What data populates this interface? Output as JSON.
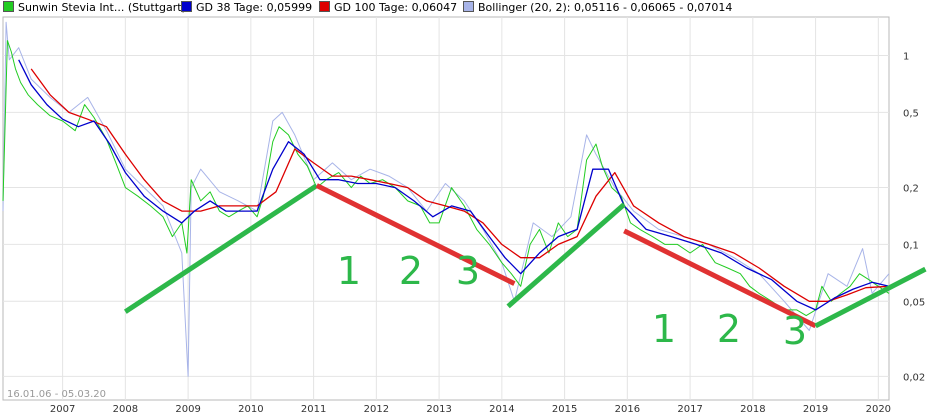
{
  "legend": [
    {
      "label": "Sunwin Stevia Int... (Stuttgart)",
      "color": "#22cc22"
    },
    {
      "label": "GD 38 Tage: 0,05999",
      "color": "#0000cc"
    },
    {
      "label": "GD 100 Tage: 0,06047",
      "color": "#dd0000"
    },
    {
      "label": "Bollinger (20, 2): 0,05116 - 0,06065 - 0,07014",
      "color": "#a8b4e8"
    }
  ],
  "date_range": "16.01.06 - 05.03.20",
  "chart_data": {
    "type": "line",
    "title": "",
    "xlabel": "",
    "ylabel": "",
    "y_scale": "log",
    "ylim": [
      0.015,
      1.6
    ],
    "xlim": [
      2006.05,
      2020.17
    ],
    "grid": true,
    "x_ticks": [
      {
        "value": 2007,
        "label": "2007"
      },
      {
        "value": 2008,
        "label": "2008"
      },
      {
        "value": 2009,
        "label": "2009"
      },
      {
        "value": 2010,
        "label": "2010"
      },
      {
        "value": 2011,
        "label": "2011"
      },
      {
        "value": 2012,
        "label": "2012"
      },
      {
        "value": 2013,
        "label": "2013"
      },
      {
        "value": 2014,
        "label": "2014"
      },
      {
        "value": 2015,
        "label": "2015"
      },
      {
        "value": 2016,
        "label": "2016"
      },
      {
        "value": 2017,
        "label": "2017"
      },
      {
        "value": 2018,
        "label": "2018"
      },
      {
        "value": 2019,
        "label": "2019"
      },
      {
        "value": 2020,
        "label": "2020"
      }
    ],
    "y_ticks": [
      {
        "value": 1,
        "label": "1"
      },
      {
        "value": 0.5,
        "label": "0,5"
      },
      {
        "value": 0.2,
        "label": "0,2"
      },
      {
        "value": 0.1,
        "label": "0,1"
      },
      {
        "value": 0.05,
        "label": "0,05"
      },
      {
        "value": 0.02,
        "label": "0,02"
      }
    ],
    "series": [
      {
        "name": "Sunwin Stevia Int... (Stuttgart)",
        "color": "#22cc22",
        "x": [
          2006.05,
          2006.12,
          2006.18,
          2006.25,
          2006.33,
          2006.45,
          2006.6,
          2006.8,
          2007.0,
          2007.2,
          2007.35,
          2007.5,
          2007.7,
          2007.85,
          2008.0,
          2008.2,
          2008.4,
          2008.6,
          2008.75,
          2008.9,
          2008.98,
          2009.05,
          2009.2,
          2009.35,
          2009.5,
          2009.65,
          2009.8,
          2009.95,
          2010.1,
          2010.2,
          2010.35,
          2010.45,
          2010.6,
          2010.75,
          2010.9,
          2011.05,
          2011.2,
          2011.4,
          2011.6,
          2011.75,
          2011.9,
          2012.1,
          2012.3,
          2012.5,
          2012.7,
          2012.85,
          2013.0,
          2013.2,
          2013.4,
          2013.6,
          2013.8,
          2014.0,
          2014.15,
          2014.3,
          2014.45,
          2014.6,
          2014.75,
          2014.9,
          2015.05,
          2015.2,
          2015.35,
          2015.5,
          2015.6,
          2015.75,
          2015.9,
          2016.05,
          2016.2,
          2016.4,
          2016.6,
          2016.8,
          2017.0,
          2017.2,
          2017.4,
          2017.6,
          2017.8,
          2017.95,
          2018.1,
          2018.3,
          2018.5,
          2018.7,
          2018.85,
          2019.0,
          2019.1,
          2019.25,
          2019.4,
          2019.55,
          2019.7,
          2019.85,
          2020.0,
          2020.17
        ],
        "y": [
          0.17,
          1.2,
          1.05,
          0.85,
          0.72,
          0.62,
          0.55,
          0.48,
          0.45,
          0.4,
          0.55,
          0.47,
          0.36,
          0.27,
          0.2,
          0.18,
          0.16,
          0.14,
          0.11,
          0.13,
          0.09,
          0.22,
          0.17,
          0.19,
          0.15,
          0.14,
          0.15,
          0.16,
          0.14,
          0.18,
          0.35,
          0.42,
          0.38,
          0.3,
          0.26,
          0.2,
          0.22,
          0.24,
          0.2,
          0.23,
          0.21,
          0.22,
          0.2,
          0.17,
          0.16,
          0.13,
          0.13,
          0.2,
          0.16,
          0.12,
          0.1,
          0.08,
          0.07,
          0.06,
          0.1,
          0.12,
          0.09,
          0.13,
          0.11,
          0.12,
          0.28,
          0.34,
          0.26,
          0.2,
          0.18,
          0.13,
          0.12,
          0.11,
          0.1,
          0.1,
          0.09,
          0.1,
          0.08,
          0.075,
          0.07,
          0.06,
          0.055,
          0.05,
          0.045,
          0.045,
          0.042,
          0.045,
          0.06,
          0.05,
          0.055,
          0.06,
          0.07,
          0.065,
          0.06,
          0.055
        ]
      },
      {
        "name": "GD 38 Tage: 0,05999",
        "color": "#0000cc",
        "x": [
          2006.3,
          2006.5,
          2006.75,
          2007.0,
          2007.25,
          2007.5,
          2007.75,
          2008.0,
          2008.3,
          2008.6,
          2008.9,
          2009.1,
          2009.35,
          2009.6,
          2009.85,
          2010.1,
          2010.35,
          2010.6,
          2010.85,
          2011.1,
          2011.4,
          2011.7,
          2012.0,
          2012.3,
          2012.6,
          2012.9,
          2013.2,
          2013.5,
          2013.8,
          2014.05,
          2014.3,
          2014.6,
          2014.9,
          2015.2,
          2015.45,
          2015.7,
          2015.95,
          2016.3,
          2016.7,
          2017.1,
          2017.5,
          2017.9,
          2018.3,
          2018.7,
          2019.0,
          2019.3,
          2019.6,
          2019.9,
          2020.17
        ],
        "y": [
          0.95,
          0.7,
          0.55,
          0.46,
          0.42,
          0.45,
          0.34,
          0.24,
          0.18,
          0.15,
          0.13,
          0.15,
          0.17,
          0.15,
          0.15,
          0.15,
          0.25,
          0.35,
          0.3,
          0.22,
          0.22,
          0.21,
          0.21,
          0.2,
          0.17,
          0.14,
          0.16,
          0.15,
          0.11,
          0.085,
          0.07,
          0.09,
          0.11,
          0.12,
          0.25,
          0.25,
          0.16,
          0.12,
          0.11,
          0.1,
          0.09,
          0.075,
          0.065,
          0.05,
          0.045,
          0.052,
          0.058,
          0.063,
          0.06
        ]
      },
      {
        "name": "GD 100 Tage: 0,06047",
        "color": "#dd0000",
        "x": [
          2006.5,
          2006.8,
          2007.1,
          2007.4,
          2007.7,
          2008.0,
          2008.3,
          2008.6,
          2008.9,
          2009.2,
          2009.5,
          2009.8,
          2010.1,
          2010.4,
          2010.7,
          2011.0,
          2011.3,
          2011.6,
          2011.9,
          2012.2,
          2012.5,
          2012.8,
          2013.1,
          2013.4,
          2013.7,
          2014.0,
          2014.3,
          2014.6,
          2014.9,
          2015.2,
          2015.5,
          2015.8,
          2016.1,
          2016.5,
          2016.9,
          2017.3,
          2017.7,
          2018.1,
          2018.5,
          2018.9,
          2019.2,
          2019.5,
          2019.8,
          2020.17
        ],
        "y": [
          0.85,
          0.62,
          0.5,
          0.46,
          0.42,
          0.3,
          0.22,
          0.17,
          0.15,
          0.15,
          0.16,
          0.16,
          0.16,
          0.19,
          0.32,
          0.27,
          0.23,
          0.23,
          0.22,
          0.21,
          0.2,
          0.17,
          0.16,
          0.15,
          0.13,
          0.1,
          0.085,
          0.085,
          0.1,
          0.11,
          0.18,
          0.24,
          0.16,
          0.13,
          0.11,
          0.1,
          0.09,
          0.075,
          0.06,
          0.05,
          0.05,
          0.054,
          0.059,
          0.06
        ]
      },
      {
        "name": "Bollinger (20, 2): 0,05116 - 0,06065 - 0,07014",
        "color": "#a8b4e8",
        "x": [
          2006.05,
          2006.1,
          2006.15,
          2006.3,
          2006.5,
          2006.8,
          2007.1,
          2007.4,
          2007.7,
          2008.0,
          2008.3,
          2008.6,
          2008.9,
          2009.0,
          2009.05,
          2009.2,
          2009.5,
          2009.8,
          2010.1,
          2010.35,
          2010.5,
          2010.7,
          2011.0,
          2011.3,
          2011.6,
          2011.9,
          2012.2,
          2012.5,
          2012.8,
          2013.1,
          2013.4,
          2013.7,
          2014.0,
          2014.2,
          2014.5,
          2014.8,
          2015.1,
          2015.35,
          2015.5,
          2015.8,
          2016.1,
          2016.5,
          2016.9,
          2017.3,
          2017.7,
          2018.1,
          2018.5,
          2018.9,
          2019.2,
          2019.5,
          2019.75,
          2019.9,
          2020.17
        ],
        "y": [
          0.15,
          1.5,
          0.95,
          1.1,
          0.75,
          0.6,
          0.5,
          0.6,
          0.4,
          0.25,
          0.2,
          0.16,
          0.09,
          0.02,
          0.2,
          0.25,
          0.19,
          0.17,
          0.15,
          0.45,
          0.5,
          0.38,
          0.22,
          0.27,
          0.22,
          0.25,
          0.23,
          0.2,
          0.15,
          0.21,
          0.17,
          0.12,
          0.08,
          0.05,
          0.13,
          0.11,
          0.14,
          0.38,
          0.3,
          0.2,
          0.15,
          0.12,
          0.11,
          0.1,
          0.085,
          0.07,
          0.05,
          0.035,
          0.07,
          0.06,
          0.095,
          0.055,
          0.07
        ]
      }
    ],
    "trendlines": [
      {
        "color": "#2db84a",
        "x": [
          2008.0,
          2011.05
        ],
        "y": [
          0.044,
          0.205
        ]
      },
      {
        "color": "#e03232",
        "x": [
          2011.05,
          2014.2
        ],
        "y": [
          0.205,
          0.062
        ]
      },
      {
        "color": "#2db84a",
        "x": [
          2014.1,
          2015.95
        ],
        "y": [
          0.047,
          0.163
        ]
      },
      {
        "color": "#e03232",
        "x": [
          2015.95,
          2019.0
        ],
        "y": [
          0.118,
          0.037
        ]
      },
      {
        "color": "#2db84a",
        "x": [
          2019.0,
          2020.75
        ],
        "y": [
          0.037,
          0.074
        ]
      }
    ],
    "annotations": [
      {
        "text": "1",
        "color": "#2db84a"
      },
      {
        "text": "2",
        "color": "#2db84a"
      },
      {
        "text": "3",
        "color": "#2db84a"
      },
      {
        "text": "1",
        "color": "#2db84a"
      },
      {
        "text": "2",
        "color": "#2db84a"
      },
      {
        "text": "3",
        "color": "#2db84a"
      }
    ]
  }
}
